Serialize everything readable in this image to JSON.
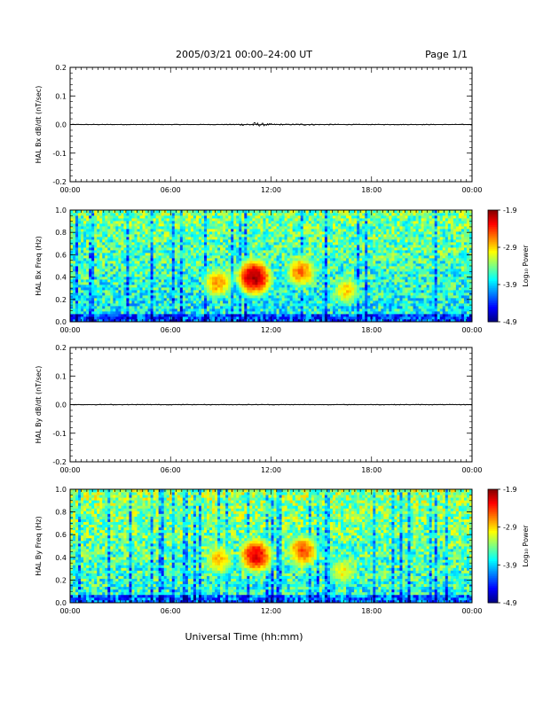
{
  "header": {
    "date_title": "2005/03/21  00:00–24:00 UT",
    "page": "Page 1/1"
  },
  "x_axis": {
    "label": "Universal Time (hh:mm)",
    "ticks": [
      "00:00",
      "06:00",
      "12:00",
      "18:00",
      "00:00"
    ],
    "range_hours": [
      0,
      24
    ]
  },
  "colorbar": {
    "label": "Log₁₀ Power",
    "ticks": [
      "-1.9",
      "-2.9",
      "-3.9",
      "-4.9"
    ],
    "range": [
      -4.9,
      -1.9
    ]
  },
  "chart_data": [
    {
      "type": "line",
      "ylabel": "HAL Bx dB/dt (nT/sec)",
      "ylim": [
        -0.2,
        0.2
      ],
      "yticks": [
        "0.2",
        "0.1",
        "0.0",
        "-0.1",
        "-0.2"
      ],
      "xlim": [
        0,
        24
      ],
      "series": [
        {
          "x": [
            0,
            2,
            4,
            6,
            8,
            9.5,
            10.5,
            11,
            11.5,
            12,
            13,
            14,
            15,
            16,
            18,
            20,
            22,
            24
          ],
          "y": [
            0.0,
            0.0,
            0.0,
            0.0,
            0.0,
            0.002,
            0.004,
            0.008,
            0.005,
            0.003,
            0.002,
            0.003,
            0.002,
            0.002,
            0.001,
            0.001,
            0.001,
            0.0
          ]
        }
      ]
    },
    {
      "type": "heatmap",
      "ylabel": "HAL Bx Freq (Hz)",
      "ylim": [
        0.0,
        1.0
      ],
      "yticks": [
        "1.0",
        "0.8",
        "0.6",
        "0.4",
        "0.2",
        "0.0"
      ],
      "xlim": [
        0,
        24
      ],
      "clim": [
        -4.9,
        -1.9
      ],
      "background_log_power": -3.6,
      "events": [
        {
          "t_hours": 8.8,
          "freq_hz": 0.35,
          "log_power": -2.7
        },
        {
          "t_hours": 11.0,
          "freq_hz": 0.4,
          "log_power": -2.0
        },
        {
          "t_hours": 13.8,
          "freq_hz": 0.45,
          "log_power": -2.6
        },
        {
          "t_hours": 16.5,
          "freq_hz": 0.28,
          "log_power": -2.9
        }
      ]
    },
    {
      "type": "line",
      "ylabel": "HAL By dB/dt (nT/sec)",
      "ylim": [
        -0.2,
        0.2
      ],
      "yticks": [
        "0.2",
        "0.1",
        "0.0",
        "-0.1",
        "-0.2"
      ],
      "xlim": [
        0,
        24
      ],
      "series": [
        {
          "x": [
            0,
            3,
            6,
            9,
            11,
            12,
            15,
            18,
            21,
            24
          ],
          "y": [
            0.0,
            0.0,
            0.0,
            0.0,
            0.001,
            0.001,
            0.0,
            0.0,
            0.0,
            0.0
          ]
        }
      ]
    },
    {
      "type": "heatmap",
      "ylabel": "HAL By Freq (Hz)",
      "ylim": [
        0.0,
        1.0
      ],
      "yticks": [
        "1.0",
        "0.8",
        "0.6",
        "0.4",
        "0.2",
        "0.0"
      ],
      "xlim": [
        0,
        24
      ],
      "clim": [
        -4.9,
        -1.9
      ],
      "background_log_power": -3.5,
      "events": [
        {
          "t_hours": 8.9,
          "freq_hz": 0.38,
          "log_power": -2.8
        },
        {
          "t_hours": 11.1,
          "freq_hz": 0.42,
          "log_power": -2.2
        },
        {
          "t_hours": 13.9,
          "freq_hz": 0.46,
          "log_power": -2.5
        },
        {
          "t_hours": 16.3,
          "freq_hz": 0.28,
          "log_power": -3.0
        }
      ]
    }
  ]
}
